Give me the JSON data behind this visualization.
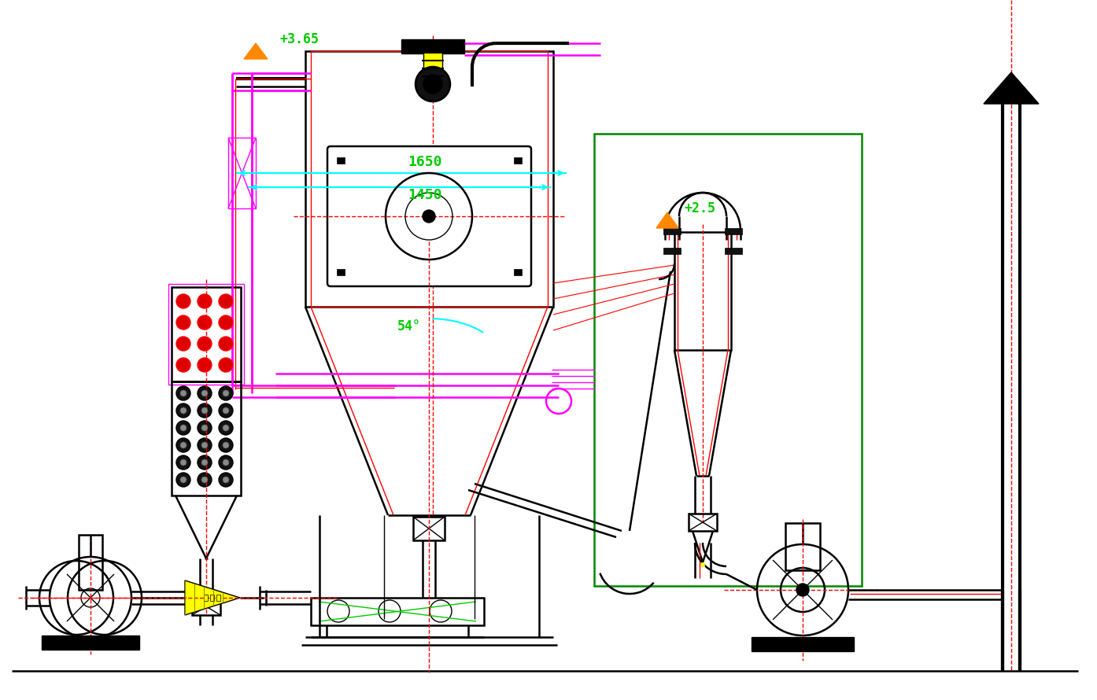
{
  "bg_color": "#ffffff",
  "colors": {
    "black": "#000000",
    "red": "#ff0000",
    "magenta": "#ff00ff",
    "cyan": "#00ffff",
    "green": "#00cc00",
    "yellow": "#ffff00",
    "orange": "#ff8800",
    "dark_red": "#cc0000",
    "dark_green": "#008800",
    "gray": "#888888",
    "dk_gray": "#444444"
  },
  "annotations": {
    "level_1": "+3.65",
    "level_2": "+2.5",
    "dim_1650": "1650",
    "dim_1450": "1450",
    "angle_54": "54°"
  }
}
